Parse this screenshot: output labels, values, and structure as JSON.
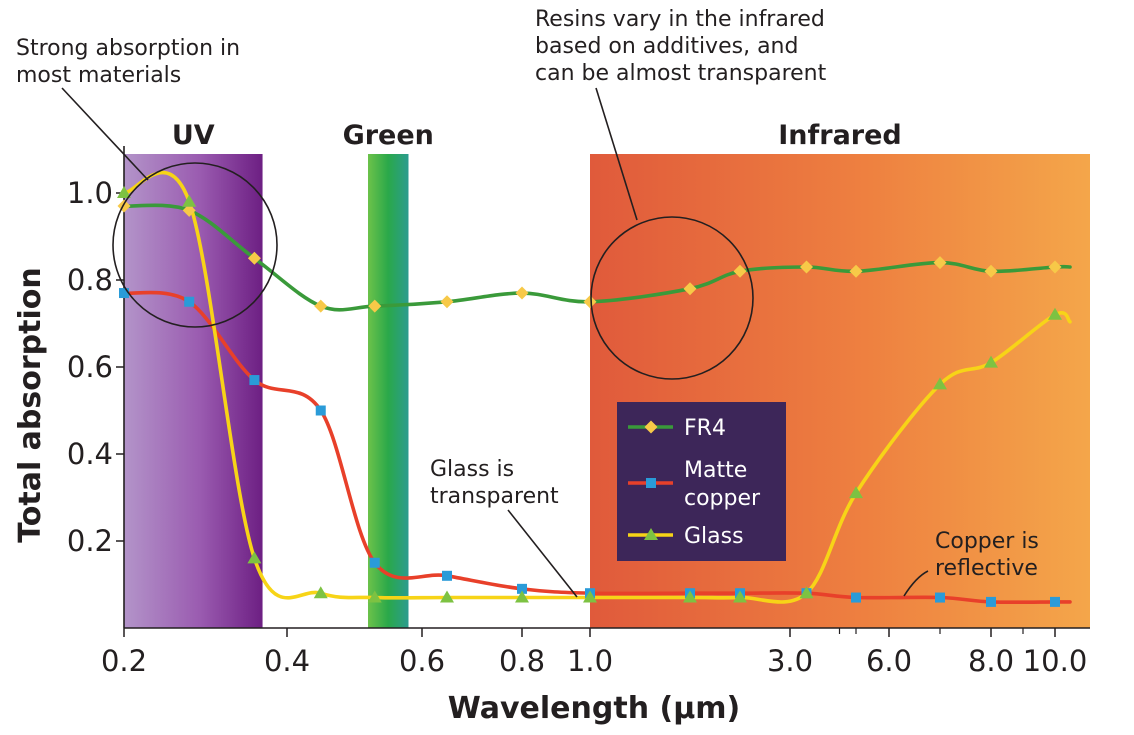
{
  "chart_data": {
    "type": "line",
    "xlabel": "Wavelength (µm)",
    "ylabel": "Total absorption",
    "xscale": "piecewise",
    "x_ticks": [
      "0.2",
      "0.4",
      "0.6",
      "0.8",
      "1.0",
      "3.0",
      "6.0",
      "8.0",
      "10.0"
    ],
    "y_ticks": [
      "0.2",
      "0.4",
      "0.6",
      "0.8",
      "1.0"
    ],
    "ylim": [
      0,
      1.1
    ],
    "grid": false,
    "legend_position": "center",
    "regions": [
      {
        "label": "UV",
        "from": 0.2,
        "to": 0.37,
        "color": "#7b2a8c"
      },
      {
        "label": "Green",
        "from": 0.52,
        "to": 0.58,
        "color": "#2aa84a"
      },
      {
        "label": "Infrared",
        "from": 1.0,
        "to": 10.4,
        "color": "#e8623a"
      }
    ],
    "series": [
      {
        "name": "FR4",
        "color": "#3a9a3a",
        "marker": "diamond",
        "marker_color": "#f7c948",
        "x": [
          0.2,
          0.28,
          0.36,
          0.45,
          0.53,
          0.65,
          0.8,
          1.0,
          2.0,
          2.5,
          3.5,
          5.0,
          7.0,
          8.0,
          10.0
        ],
        "y": [
          0.97,
          0.96,
          0.85,
          0.74,
          0.74,
          0.75,
          0.77,
          0.75,
          0.78,
          0.82,
          0.83,
          0.82,
          0.84,
          0.82,
          0.83
        ]
      },
      {
        "name": "Matte copper",
        "color": "#e8402a",
        "marker": "square",
        "marker_color": "#2a9bd8",
        "x": [
          0.2,
          0.28,
          0.36,
          0.45,
          0.53,
          0.65,
          0.8,
          1.0,
          2.0,
          2.5,
          3.5,
          5.0,
          7.0,
          8.0,
          10.0
        ],
        "y": [
          0.77,
          0.75,
          0.57,
          0.5,
          0.15,
          0.12,
          0.09,
          0.08,
          0.08,
          0.08,
          0.08,
          0.07,
          0.07,
          0.06,
          0.06
        ]
      },
      {
        "name": "Glass",
        "color": "#f7d417",
        "marker": "triangle",
        "marker_color": "#7dc242",
        "x": [
          0.2,
          0.28,
          0.36,
          0.45,
          0.53,
          0.65,
          0.8,
          1.0,
          2.0,
          2.5,
          3.5,
          5.0,
          7.0,
          8.0,
          10.0
        ],
        "y": [
          1.0,
          0.98,
          0.16,
          0.08,
          0.07,
          0.07,
          0.07,
          0.07,
          0.07,
          0.07,
          0.08,
          0.31,
          0.56,
          0.61,
          0.72
        ]
      }
    ],
    "annotations": [
      {
        "id": "strong",
        "lines": [
          "Strong absorption in",
          "most materials"
        ]
      },
      {
        "id": "resins",
        "lines": [
          "Resins vary in the infrared",
          "based on additives, and",
          "can be almost transparent"
        ]
      },
      {
        "id": "glass",
        "lines": [
          "Glass is",
          "transparent"
        ]
      },
      {
        "id": "copper",
        "lines": [
          "Copper is",
          "reflective"
        ]
      }
    ]
  }
}
